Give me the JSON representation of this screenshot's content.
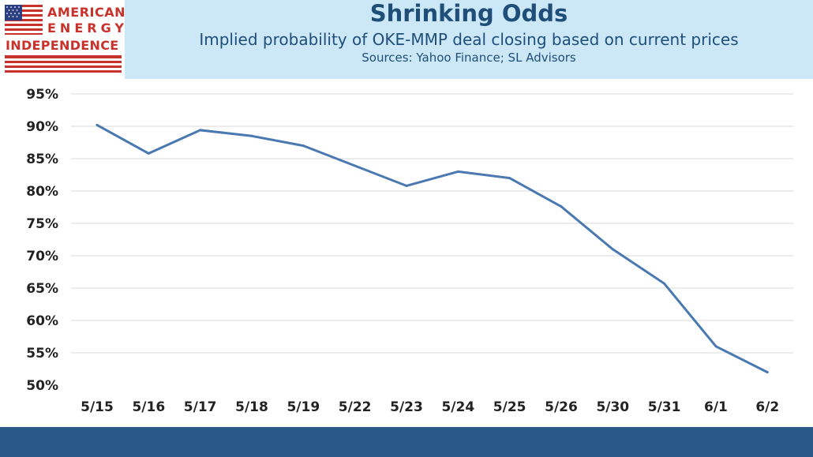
{
  "logo": {
    "line1": "AMERICAN",
    "line2": "ENERGY",
    "line3": "INDEPENDENCE"
  },
  "header": {
    "title": "Shrinking Odds",
    "subtitle": "Implied probability of OKE-MMP deal closing based on current prices",
    "sources": "Sources: Yahoo Finance; SL Advisors",
    "background_color": "#cce8f7",
    "text_color": "#1f4e79"
  },
  "chart_data": {
    "type": "line",
    "categories": [
      "5/15",
      "5/16",
      "5/17",
      "5/18",
      "5/19",
      "5/22",
      "5/23",
      "5/24",
      "5/25",
      "5/26",
      "5/30",
      "5/31",
      "6/1",
      "6/2"
    ],
    "series": [
      {
        "values": [
          90.2,
          85.8,
          89.4,
          88.5,
          87.0,
          83.9,
          80.8,
          83.0,
          82.0,
          77.6,
          71.0,
          65.7,
          56.0,
          52.0
        ],
        "color": "#4a78b0"
      }
    ],
    "y_tick_labels": [
      "50%",
      "55%",
      "60%",
      "65%",
      "70%",
      "75%",
      "80%",
      "85%",
      "90%",
      "95%"
    ],
    "ylim": [
      50,
      95
    ],
    "y_unit": "%",
    "grid": true,
    "legend": "none"
  },
  "footer": {
    "color": "#2b5987"
  }
}
